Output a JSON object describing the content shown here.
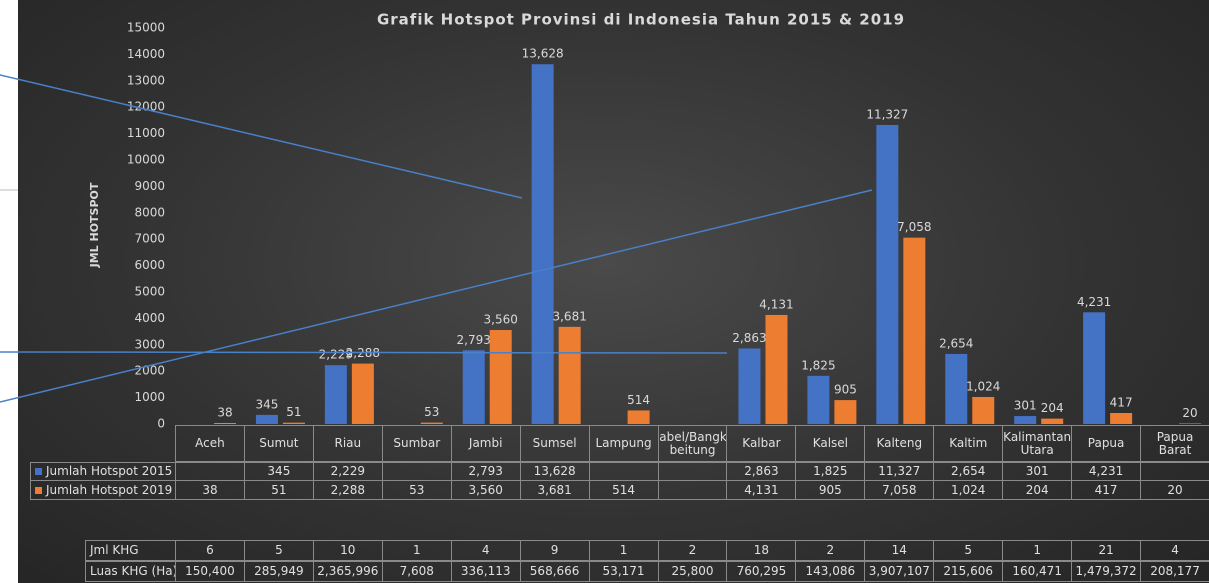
{
  "chart_data": {
    "type": "bar",
    "title": "Grafik Hotspot Provinsi di Indonesia Tahun 2015 & 2019",
    "y_label": "JML HOTSPOT",
    "categories": [
      "Aceh",
      "Sumut",
      "Riau",
      "Sumbar",
      "Jambi",
      "Sumsel",
      "Lampung",
      "Babel/Bangka beitung",
      "Kalbar",
      "Kalsel",
      "Kalteng",
      "Kaltim",
      "Kalimantan Utara",
      "Papua",
      "Papua Barat"
    ],
    "series": [
      {
        "name": "Jumlah Hotspot 2015",
        "color": "#4472c4",
        "values": [
          null,
          345,
          2229,
          null,
          2793,
          13628,
          null,
          null,
          2863,
          1825,
          11327,
          2654,
          301,
          4231,
          null
        ],
        "value_labels": [
          null,
          "345",
          "2,229",
          null,
          "2,793",
          "13,628",
          null,
          null,
          "2,863",
          "1,825",
          "11,327",
          "2,654",
          "301",
          "4,231",
          null
        ]
      },
      {
        "name": "Jumlah Hotspot 2019",
        "color": "#ed7d31",
        "values": [
          38,
          51,
          2288,
          53,
          3560,
          3681,
          514,
          null,
          4131,
          905,
          7058,
          1024,
          204,
          417,
          20
        ],
        "value_labels": [
          "38",
          "51",
          "2,288",
          "53",
          "3,560",
          "3,681",
          "514",
          null,
          "4,131",
          "905",
          "7,058",
          "1,024",
          "204",
          "417",
          "20"
        ]
      }
    ],
    "ylim": [
      0,
      15000
    ],
    "yticks": [
      0,
      1000,
      2000,
      3000,
      4000,
      5000,
      6000,
      7000,
      8000,
      9000,
      10000,
      11000,
      12000,
      13000,
      14000,
      15000
    ],
    "grid": false,
    "legend": "table",
    "extra_table": {
      "rows": [
        {
          "label": "Jml KHG",
          "cells": [
            "6",
            "5",
            "10",
            "1",
            "4",
            "9",
            "1",
            "2",
            "18",
            "2",
            "14",
            "5",
            "1",
            "21",
            "4"
          ]
        },
        {
          "label": "Luas KHG (Ha)",
          "cells": [
            "150,400",
            "285,949",
            "2,365,996",
            "7,608",
            "336,113",
            "568,666",
            "53,171",
            "25,800",
            "760,295",
            "143,086",
            "3,907,107",
            "215,606",
            "160,471",
            "1,479,372",
            "208,177"
          ]
        }
      ]
    }
  }
}
